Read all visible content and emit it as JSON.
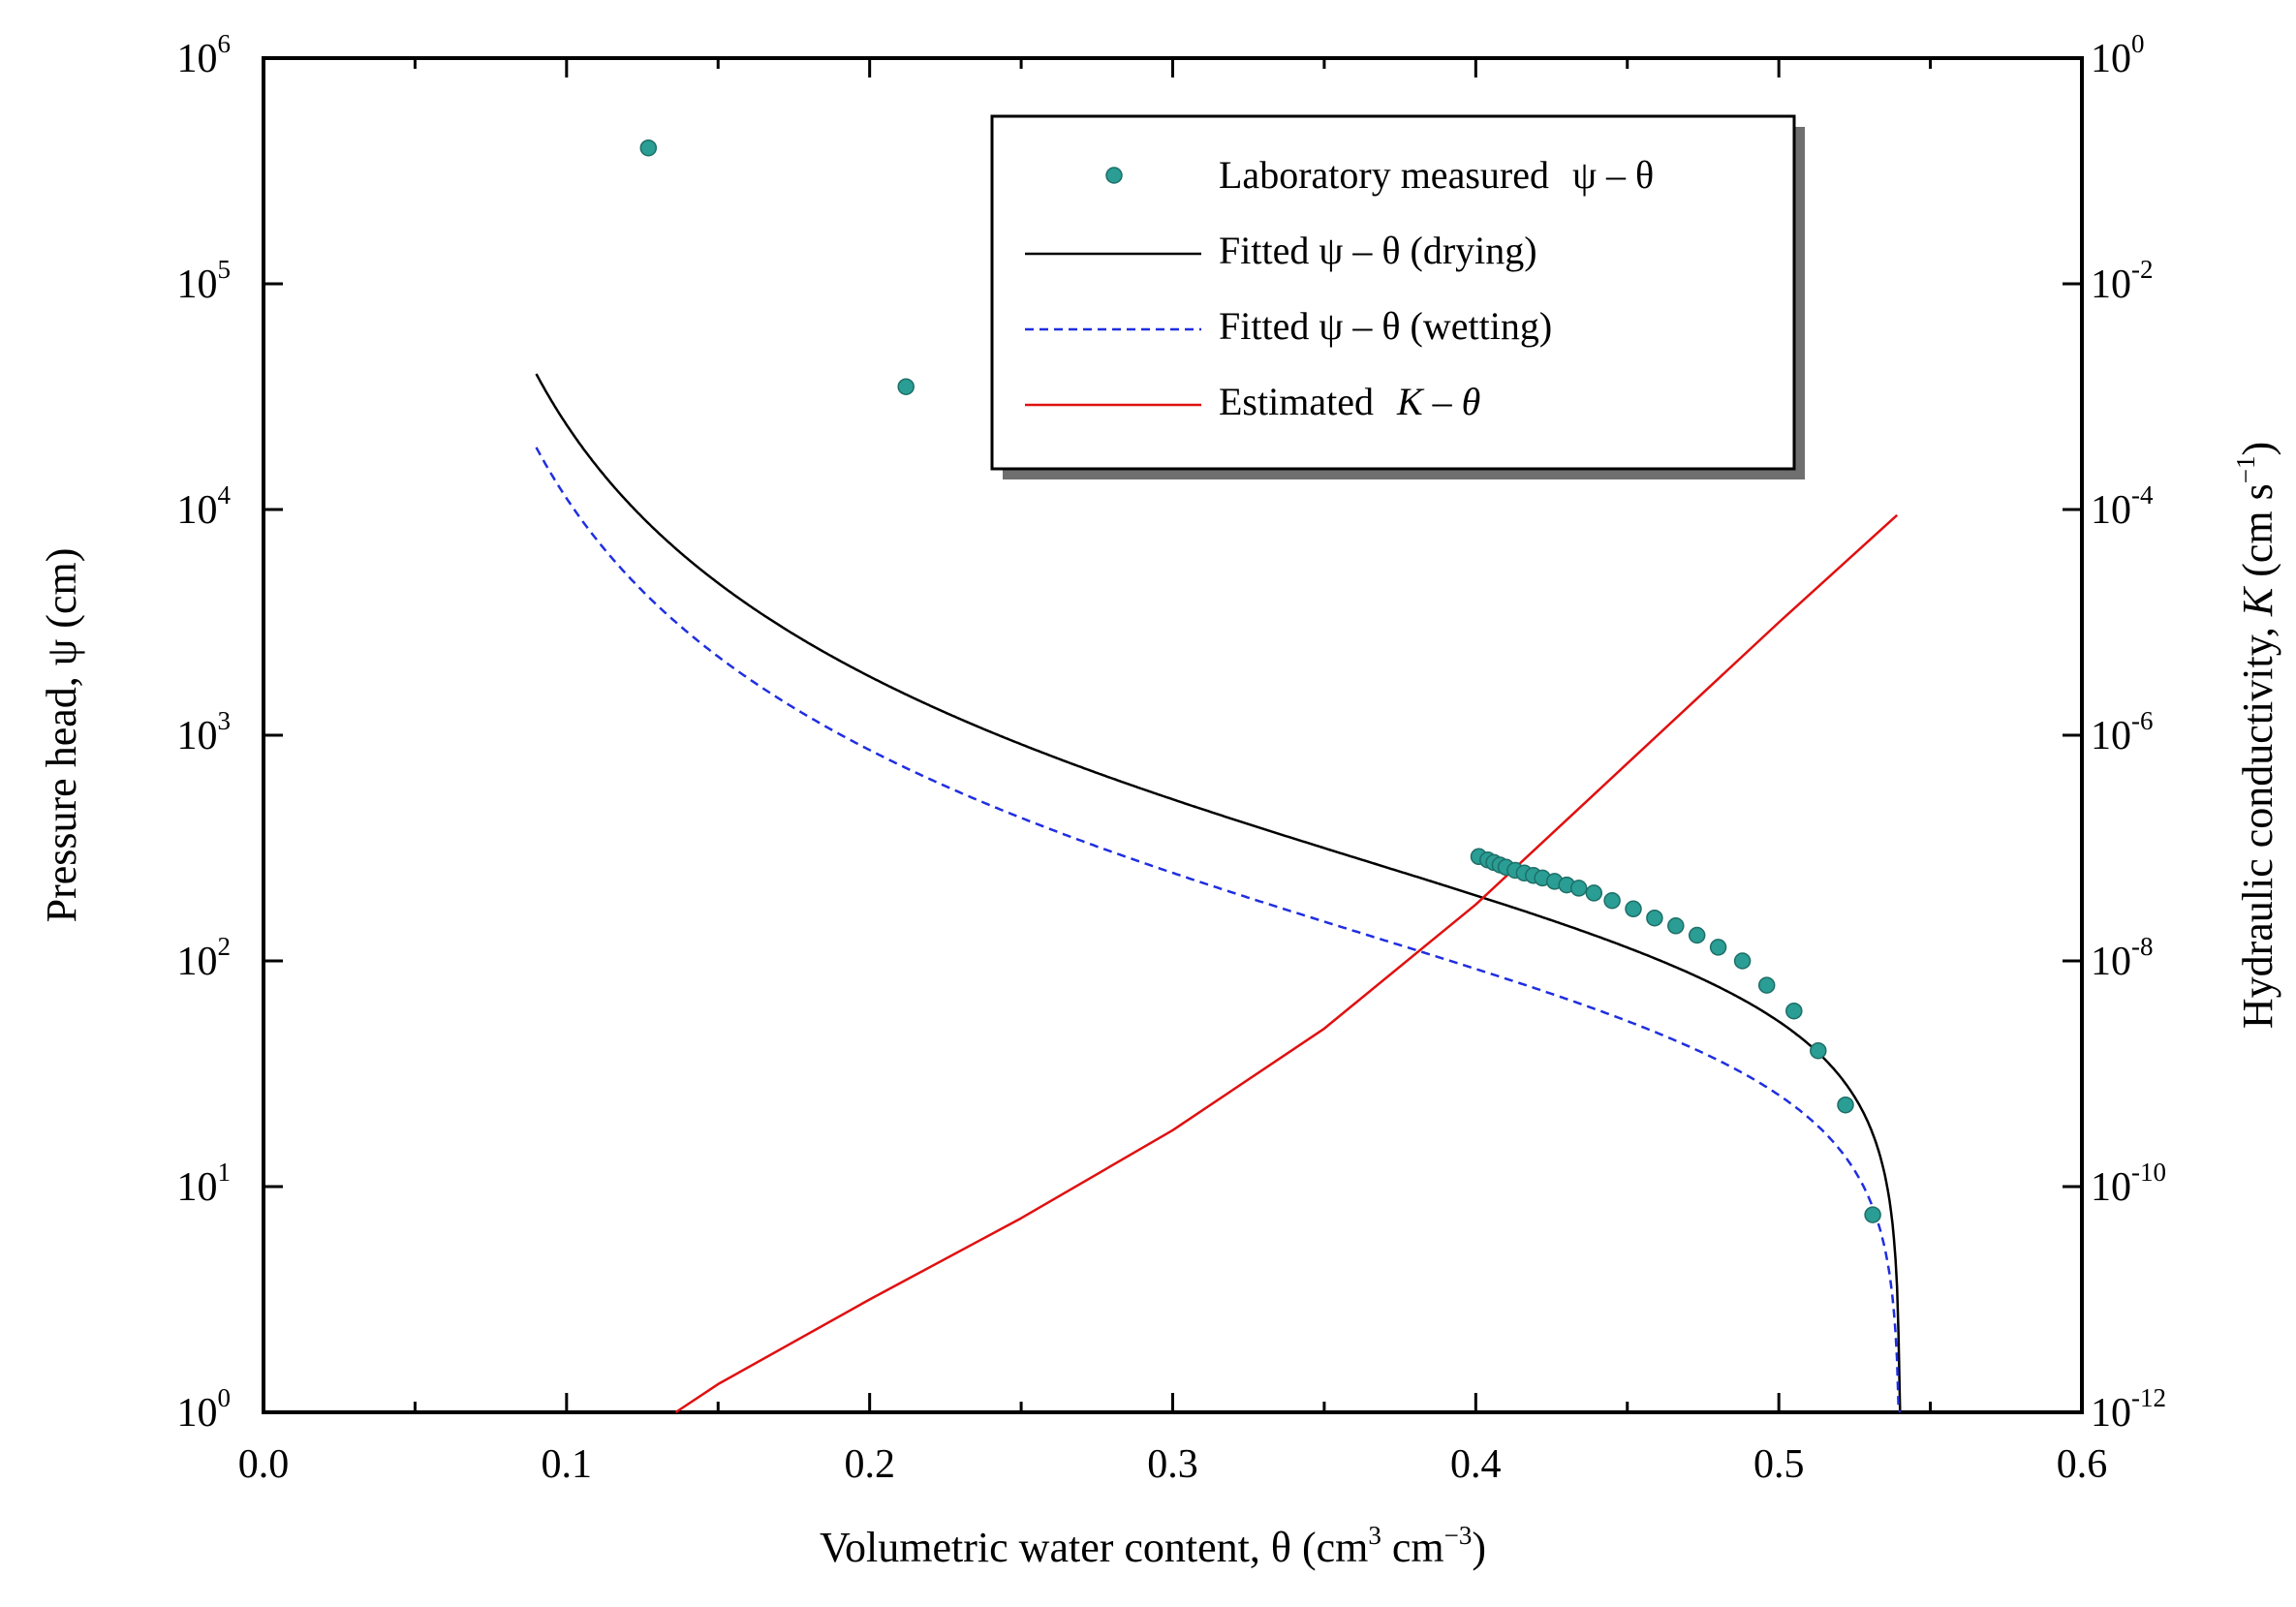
{
  "chart_data": {
    "type": "scatter",
    "title": "",
    "xlabel": {
      "text": "Volumetric water content, θ  (cm",
      "unit_a": "cm",
      "exp_a": "3",
      "unit_b": "cm",
      "exp_b": "−3",
      "close": ")"
    },
    "ylabel_left": "Pressure head, ψ  (cm)",
    "ylabel_right": {
      "text": "Hydraulic conductivity, ",
      "var": "K",
      "unit": " (cm s",
      "exp": "−1",
      "close": ")"
    },
    "xlim": [
      0.0,
      0.6
    ],
    "ylim_left_log10": [
      0,
      6
    ],
    "ylim_right_log10": [
      -12,
      0
    ],
    "x_ticks": [
      "0.0",
      "0.1",
      "0.2",
      "0.3",
      "0.4",
      "0.5",
      "0.6"
    ],
    "y_left_ticks": [
      {
        "base": "10",
        "exp": "0"
      },
      {
        "base": "10",
        "exp": "1"
      },
      {
        "base": "10",
        "exp": "2"
      },
      {
        "base": "10",
        "exp": "3"
      },
      {
        "base": "10",
        "exp": "4"
      },
      {
        "base": "10",
        "exp": "5"
      },
      {
        "base": "10",
        "exp": "6"
      }
    ],
    "y_right_ticks": [
      {
        "base": "10",
        "exp": "-12"
      },
      {
        "base": "10",
        "exp": "-10"
      },
      {
        "base": "10",
        "exp": "-8"
      },
      {
        "base": "10",
        "exp": "-6"
      },
      {
        "base": "10",
        "exp": "-4"
      },
      {
        "base": "10",
        "exp": "-2"
      },
      {
        "base": "10",
        "exp": "0"
      }
    ],
    "legend": {
      "position": "top-center",
      "entries": [
        {
          "label": "Laboratory measured",
          "math": "ψ – θ"
        },
        {
          "label": "Fitted ψ – θ (drying)",
          "math": ""
        },
        {
          "label": "Fitted ψ – θ (wetting)",
          "math": ""
        },
        {
          "label": "Estimated",
          "math": "K – θ"
        }
      ]
    },
    "series": [
      {
        "name": "Laboratory measured ψ – θ",
        "kind": "scatter",
        "axis": "left",
        "color": "#2a9d94",
        "points": [
          [
            0.127,
            400000
          ],
          [
            0.212,
            35000
          ],
          [
            0.401,
            290
          ],
          [
            0.404,
            280
          ],
          [
            0.406,
            273
          ],
          [
            0.408,
            266
          ],
          [
            0.41,
            260
          ],
          [
            0.413,
            252
          ],
          [
            0.416,
            245
          ],
          [
            0.419,
            239
          ],
          [
            0.422,
            233
          ],
          [
            0.426,
            225
          ],
          [
            0.43,
            217
          ],
          [
            0.434,
            210
          ],
          [
            0.439,
            200
          ],
          [
            0.445,
            185
          ],
          [
            0.452,
            170
          ],
          [
            0.459,
            155
          ],
          [
            0.466,
            143
          ],
          [
            0.473,
            130
          ],
          [
            0.48,
            115
          ],
          [
            0.488,
            100
          ],
          [
            0.496,
            78
          ],
          [
            0.505,
            60
          ],
          [
            0.513,
            40
          ],
          [
            0.522,
            23
          ],
          [
            0.531,
            7.5
          ]
        ]
      },
      {
        "name": "Fitted ψ – θ (drying)",
        "kind": "line",
        "axis": "left",
        "color": "#000000",
        "theta_r": 0.05,
        "theta_s": 0.54,
        "alpha": 0.0085,
        "n": 1.43
      },
      {
        "name": "Fitted ψ – θ (wetting)",
        "kind": "dashed-line",
        "axis": "left",
        "color": "#1f2ee0",
        "theta_r": 0.05,
        "theta_s": 0.54,
        "alpha": 0.018,
        "n": 1.43
      },
      {
        "name": "Estimated K – θ",
        "kind": "line",
        "axis": "right",
        "color": "#e01010",
        "points": [
          [
            0.136,
            -12.0
          ],
          [
            0.15,
            -11.75
          ],
          [
            0.2,
            -11.0
          ],
          [
            0.25,
            -10.28
          ],
          [
            0.3,
            -9.5
          ],
          [
            0.35,
            -8.6
          ],
          [
            0.4,
            -7.5
          ],
          [
            0.45,
            -6.25
          ],
          [
            0.5,
            -5.0
          ],
          [
            0.539,
            -4.05
          ]
        ]
      }
    ]
  }
}
